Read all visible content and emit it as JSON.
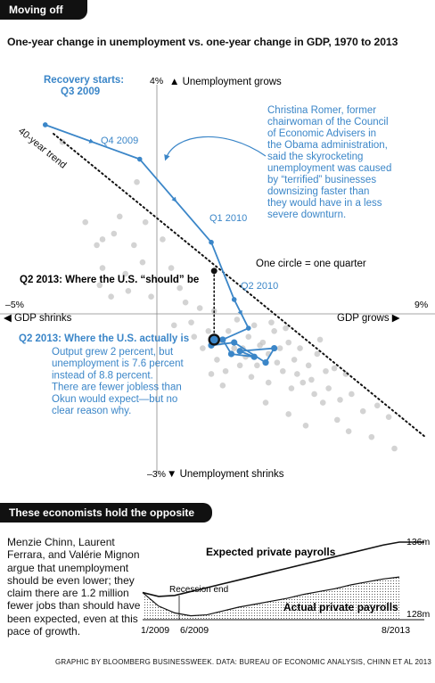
{
  "section1": {
    "tab": "Moving off trend",
    "subtitle": "One-year change in unemployment vs. one-year change in GDP, 1970 to 2013"
  },
  "chart_data": [
    {
      "type": "scatter",
      "title": "One-year change in unemployment vs. one-year change in GDP, 1970 to 2013",
      "xlim": [
        -5,
        9
      ],
      "ylim": [
        -3,
        4
      ],
      "axis_labels": {
        "x_min": "–5%",
        "x_max": "9%",
        "y_max": "4%",
        "y_min": "–3%",
        "x_left": "◀ GDP shrinks",
        "x_right": "GDP grows ▶",
        "y_top": "▲ Unemployment grows",
        "y_bottom": "▼ Unemployment shrinks"
      },
      "trend_label": "40-year trend",
      "trend_line": [
        [
          -5,
          3.25
        ],
        [
          9,
          -2.05
        ]
      ],
      "legend_note": "One circle = one quarter",
      "scatter_points": [
        [
          -3.3,
          3.0
        ],
        [
          -0.7,
          2.3
        ],
        [
          -1.9,
          1.3
        ],
        [
          -1.5,
          1.4
        ],
        [
          -2.1,
          1.2
        ],
        [
          -2.5,
          1.6
        ],
        [
          -1.3,
          1.7
        ],
        [
          -0.8,
          1.2
        ],
        [
          -0.4,
          1.6
        ],
        [
          -1.9,
          0.8
        ],
        [
          -1.1,
          0.7
        ],
        [
          -0.5,
          0.9
        ],
        [
          -1.6,
          0.3
        ],
        [
          -1.0,
          0.4
        ],
        [
          -2.0,
          0.5
        ],
        [
          0.2,
          1.3
        ],
        [
          0.5,
          0.8
        ],
        [
          -0.2,
          0.3
        ],
        [
          0.8,
          0.45
        ],
        [
          1.0,
          0.2
        ],
        [
          1.5,
          0.1
        ],
        [
          1.8,
          -0.3
        ],
        [
          2.2,
          -0.5
        ],
        [
          2.5,
          -0.3
        ],
        [
          3.0,
          -0.6
        ],
        [
          2.8,
          -0.1
        ],
        [
          3.2,
          -0.4
        ],
        [
          3.4,
          -0.2
        ],
        [
          3.7,
          -0.5
        ],
        [
          3.9,
          -0.7
        ],
        [
          4.1,
          -0.3
        ],
        [
          4.3,
          -0.6
        ],
        [
          4.6,
          -0.5
        ],
        [
          4.8,
          -0.8
        ],
        [
          5.0,
          -0.6
        ],
        [
          5.3,
          -0.9
        ],
        [
          5.6,
          -0.7
        ],
        [
          5.9,
          -1.0
        ],
        [
          2.1,
          -0.8
        ],
        [
          2.4,
          -1.0
        ],
        [
          2.9,
          -0.9
        ],
        [
          3.3,
          -1.1
        ],
        [
          3.5,
          -0.9
        ],
        [
          3.9,
          -1.2
        ],
        [
          4.4,
          -1.0
        ],
        [
          4.7,
          -1.3
        ],
        [
          5.1,
          -1.2
        ],
        [
          5.5,
          -1.4
        ],
        [
          6.0,
          -1.3
        ],
        [
          6.4,
          -1.5
        ],
        [
          6.8,
          -1.4
        ],
        [
          7.2,
          -1.7
        ],
        [
          7.7,
          -1.6
        ],
        [
          8.1,
          -1.8
        ],
        [
          1.6,
          -0.6
        ],
        [
          1.3,
          -0.4
        ],
        [
          2.7,
          -0.6
        ],
        [
          3.1,
          -0.75
        ],
        [
          3.6,
          -0.55
        ],
        [
          4.2,
          -0.85
        ],
        [
          4.9,
          -1.05
        ],
        [
          5.4,
          -1.15
        ],
        [
          5.8,
          -1.55
        ],
        [
          6.3,
          -1.85
        ],
        [
          6.7,
          -2.05
        ],
        [
          7.5,
          -2.15
        ],
        [
          8.3,
          -2.35
        ],
        [
          4.6,
          -1.75
        ],
        [
          5.2,
          -1.95
        ],
        [
          3.8,
          -1.55
        ],
        [
          2.3,
          -1.25
        ],
        [
          1.9,
          -1.05
        ],
        [
          4.0,
          -0.15
        ],
        [
          4.5,
          -0.25
        ],
        [
          6.2,
          -0.95
        ],
        [
          6.6,
          -1.05
        ],
        [
          1.2,
          -0.15
        ],
        [
          2.0,
          0.05
        ],
        [
          0.6,
          -0.2
        ],
        [
          5.7,
          -0.45
        ]
      ],
      "highlight_series": {
        "points": [
          [
            -3.9,
            3.3
          ],
          [
            -0.6,
            2.7
          ],
          [
            1.9,
            1.25
          ],
          [
            2.7,
            0.25
          ],
          [
            3.2,
            -0.25
          ],
          [
            2.3,
            -0.45
          ],
          [
            2.6,
            -0.7
          ],
          [
            3.4,
            -0.75
          ],
          [
            2.9,
            -0.65
          ],
          [
            4.1,
            -0.6
          ],
          [
            3.8,
            -0.85
          ],
          [
            2.7,
            -0.5
          ],
          [
            1.9,
            -0.55
          ],
          [
            2.0,
            -0.45
          ]
        ],
        "labels": [
          {
            "text": "Recovery starts:",
            "bold": true
          },
          {
            "text": "Q3 2009",
            "bold": true
          },
          {
            "text": "Q4 2009"
          },
          {
            "text": "Q1 2010"
          },
          {
            "text": "Q2 2010"
          }
        ]
      },
      "q2_2013_should": {
        "x": 2.0,
        "y": 0.75,
        "label": "Q2 2013: Where the U.S. “should” be"
      },
      "q2_2013_actual": {
        "x": 2.0,
        "y": -0.45,
        "label": "Q2 2013: Where the U.S. actually is"
      },
      "annotations": {
        "romer": [
          "Christina Romer, former",
          "chairwoman of the Council",
          "of Economic Advisers in",
          "the Obama administration,",
          "said the skyrocketing",
          "unemployment was caused",
          "by “terrified” businesses",
          "downsizing faster than",
          "they would have in a less",
          "severe downturn."
        ],
        "actual": [
          "Output grew 2 percent, but",
          "unemployment is 7.6 percent",
          "instead of 8.8 percent.",
          "There are fewer jobless than",
          "Okun would expect—but no",
          "clear reason why."
        ]
      }
    },
    {
      "type": "area",
      "series": [
        {
          "name": "Expected private payrolls",
          "values": [
            130.8,
            130.4,
            130.5,
            130.9,
            131.3,
            131.7,
            132.1,
            132.5,
            132.9,
            133.3,
            133.7,
            134.1,
            134.5,
            134.9,
            135.3,
            135.7,
            136.0
          ]
        },
        {
          "name": "Actual private payrolls",
          "values": [
            130.8,
            129.4,
            128.7,
            128.4,
            128.5,
            128.9,
            129.3,
            129.6,
            129.9,
            130.2,
            130.6,
            130.9,
            131.2,
            131.6,
            131.9,
            132.2,
            132.4
          ]
        }
      ],
      "x_labels": [
        "1/2009",
        "6/2009",
        "8/2013"
      ],
      "y_labels": [
        "136m",
        "128m"
      ],
      "ylim": [
        128,
        136
      ],
      "annotation": "Recession end"
    }
  ],
  "section2": {
    "tab": "These economists hold the opposite view",
    "paragraph": "Menzie Chinn, Laurent Ferrara, and Valérie Mignon argue that unemployment should be even lower; they claim there are 1.2 million fewer jobs than should have been expected, even at this pace of growth."
  },
  "credit": "GRAPHIC BY BLOOMBERG BUSINESSWEEK. DATA: BUREAU OF ECONOMIC ANALYSIS, CHINN ET AL 2013",
  "colors": {
    "accent": "#3b86c8",
    "ink": "#111111",
    "dots": "#c4c4c4"
  }
}
